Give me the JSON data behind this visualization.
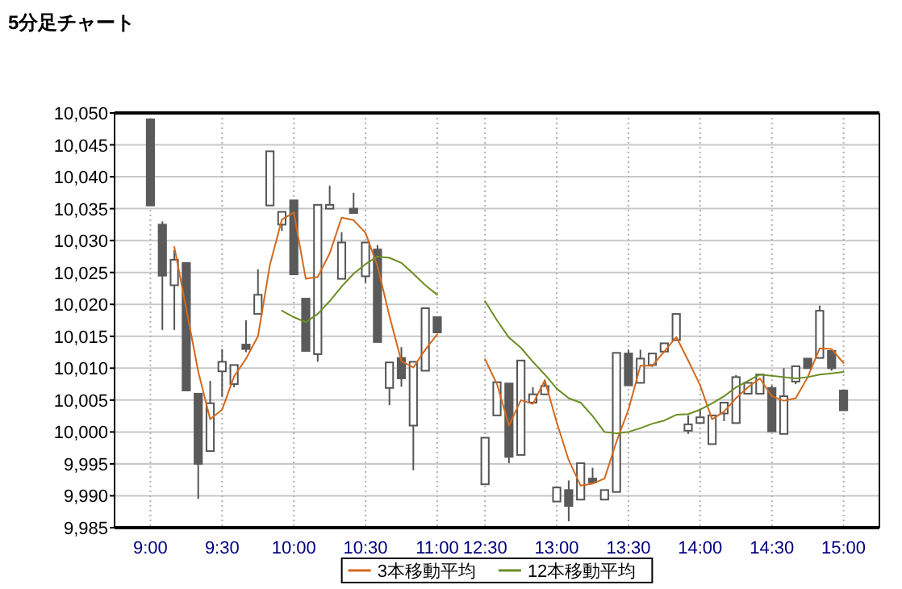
{
  "chart_data": {
    "type": "candlestick",
    "title": "5分足チャート",
    "categories": [
      "9:00",
      null,
      null,
      null,
      null,
      null,
      "9:30",
      null,
      null,
      null,
      null,
      null,
      "10:00",
      null,
      null,
      null,
      null,
      null,
      "10:30",
      null,
      null,
      null,
      null,
      null,
      "11:00",
      null,
      null,
      null,
      "12:30",
      null,
      null,
      null,
      null,
      null,
      "13:00",
      null,
      null,
      null,
      null,
      null,
      "13:30",
      null,
      null,
      null,
      null,
      null,
      "14:00",
      null,
      null,
      null,
      null,
      null,
      "14:30",
      null,
      null,
      null,
      null,
      null,
      "15:00"
    ],
    "ohlc": [
      [
        10049,
        10049,
        10035.5,
        10035.5
      ],
      [
        10032.5,
        10033,
        10016,
        10024.5
      ],
      [
        10023,
        10028.5,
        10016,
        10027
      ],
      [
        10026.5,
        10026.5,
        10006.5,
        10006.5
      ],
      [
        10006,
        10006,
        9989.5,
        9995
      ],
      [
        9997,
        10008,
        9997,
        10004.5
      ],
      [
        10009.5,
        10013,
        10005.5,
        10011
      ],
      [
        10007.5,
        10010.5,
        10007,
        10010.5
      ],
      [
        10013.7,
        10017.5,
        10012.5,
        10013
      ],
      [
        10018.5,
        10025.5,
        10018.5,
        10021.5
      ],
      [
        10035.5,
        10044,
        10035.5,
        10044
      ],
      [
        10032.5,
        10034.5,
        10031.5,
        10034.5
      ],
      [
        10036.3,
        10036.3,
        10024.7,
        10024.7
      ],
      [
        10020.9,
        10020.9,
        10012.7,
        10012.7
      ],
      [
        10012.2,
        10035.6,
        10011,
        10035.6
      ],
      [
        10035,
        10038.6,
        10035,
        10035.6
      ],
      [
        10024,
        10031.3,
        10024,
        10029.7
      ],
      [
        10035,
        10037.5,
        10034.3,
        10034.3
      ],
      [
        10024.4,
        10029.7,
        10023.4,
        10029.7
      ],
      [
        10028.6,
        10029.3,
        10014.1,
        10014.1
      ],
      [
        10006.9,
        10010.9,
        10004.2,
        10010.9
      ],
      [
        10011.6,
        10013.3,
        10007.1,
        10008.4
      ],
      [
        10001,
        10011,
        9994,
        10011
      ],
      [
        10009.6,
        10019.4,
        10009.6,
        10019.4
      ],
      [
        10018,
        10018,
        10015.6,
        10015.6
      ],
      null,
      null,
      null,
      [
        9991.8,
        9999.1,
        9991.8,
        9999.1
      ],
      [
        10002.6,
        10007.8,
        10002.6,
        10007.8
      ],
      [
        10007.6,
        10007.6,
        9995.1,
        9996.1
      ],
      [
        9996.4,
        10011.2,
        9996.4,
        10011.2
      ],
      [
        10004.6,
        10007,
        10004.6,
        10005.9
      ],
      [
        10005.9,
        10008.2,
        10005.9,
        10007.2
      ],
      [
        9989.1,
        9991.3,
        9989.1,
        9991.3
      ],
      [
        9990.9,
        9992.4,
        9986,
        9988.4
      ],
      [
        9989.4,
        9995.1,
        9989.4,
        9995.1
      ],
      [
        9992.7,
        9994.4,
        9992.1,
        9992.1
      ],
      [
        9989.4,
        9990.9,
        9989.4,
        9990.9
      ],
      [
        9990.6,
        10012.4,
        9990.6,
        10012.4
      ],
      [
        10012.3,
        10012.9,
        10007.3,
        10007.3
      ],
      [
        10007.7,
        10012.9,
        10007.7,
        10011.5
      ],
      [
        10010.5,
        10012.3,
        10010.2,
        10012.3
      ],
      [
        10012.6,
        10013.9,
        10012.6,
        10013.9
      ],
      [
        10014.4,
        10018.5,
        10014.4,
        10018.5
      ],
      [
        10000.2,
        10002.6,
        9999.7,
        10001.2
      ],
      [
        10001.4,
        10003.6,
        10001.4,
        10002.3
      ],
      [
        9998.1,
        10002.6,
        9998.1,
        10002.6
      ],
      [
        10002.9,
        10004.6,
        10001.7,
        10004.6
      ],
      [
        10001.4,
        10008.9,
        10001.4,
        10008.6
      ],
      [
        10006,
        10007.7,
        10006,
        10007.7
      ],
      [
        10006,
        10009,
        10006,
        10009
      ],
      [
        10006.9,
        10007.3,
        10000.1,
        10000.1
      ],
      [
        9999.7,
        10010,
        9999.7,
        10005.6
      ],
      [
        10007.9,
        10010.3,
        10007.5,
        10010.3
      ],
      [
        10011.5,
        10011.5,
        10010,
        10010
      ],
      [
        10011.6,
        10019.8,
        10011.6,
        10019
      ],
      [
        10012.7,
        10012.7,
        10009.6,
        10010
      ],
      [
        10006.5,
        10006.5,
        10003.4,
        10003.4
      ]
    ],
    "series": [
      {
        "name": "3本移動平均",
        "type": "line",
        "color": "#d2691e",
        "values": [
          null,
          null,
          10029,
          10019.3,
          10009.5,
          10002,
          10003.5,
          10008.7,
          10011.5,
          10015,
          10026.2,
          10033.3,
          10034.4,
          10024,
          10024.3,
          10028,
          10033.6,
          10033.2,
          10031.2,
          10026,
          10018.2,
          10011.1,
          10010.1,
          10012.9,
          10015.3,
          null,
          null,
          null,
          10011.4,
          10007.5,
          10001,
          10005,
          10004.4,
          10008.1,
          10001.5,
          9995.6,
          9991.6,
          9991.9,
          9992.7,
          9998.5,
          10003.5,
          10010.4,
          10010.4,
          10012.6,
          10014.9,
          10011.2,
          10007.3,
          10002,
          10003.2,
          10005.3,
          10007,
          10008.4,
          10005.6,
          10004.9,
          10005.3,
          10008.6,
          10013.1,
          10013,
          10010.8
        ]
      },
      {
        "name": "12本移動平均",
        "type": "line",
        "color": "#6b8e23",
        "values": [
          null,
          null,
          null,
          null,
          null,
          null,
          null,
          null,
          null,
          null,
          null,
          10019,
          10018,
          10017.2,
          10018.5,
          10020.5,
          10022.8,
          10024.8,
          10026.3,
          10027.5,
          10027.3,
          10026.5,
          10024.8,
          10023,
          10021.5,
          null,
          null,
          null,
          10020.5,
          10017.5,
          10014.8,
          10013.2,
          10011,
          10009,
          10006.8,
          10005.3,
          10004.6,
          10002.5,
          10000,
          9999.8,
          10000,
          10000.6,
          10001.3,
          10001.8,
          10002.7,
          10002.8,
          10003.5,
          10004.5,
          10005.6,
          10007,
          10008,
          10009,
          10008.8,
          10008.6,
          10008.4,
          10008.6,
          10009,
          10009.2,
          10009.4
        ]
      }
    ],
    "ylim": [
      9985,
      10050
    ],
    "yticks": [
      {
        "value": 9985,
        "label": "9,985"
      },
      {
        "value": 9990,
        "label": "9,990"
      },
      {
        "value": 9995,
        "label": "9,995"
      },
      {
        "value": 10000,
        "label": "10,000"
      },
      {
        "value": 10005,
        "label": "10,005"
      },
      {
        "value": 10010,
        "label": "10,010"
      },
      {
        "value": 10015,
        "label": "10,015"
      },
      {
        "value": 10020,
        "label": "10,020"
      },
      {
        "value": 10025,
        "label": "10,025"
      },
      {
        "value": 10030,
        "label": "10,030"
      },
      {
        "value": 10035,
        "label": "10,035"
      },
      {
        "value": 10040,
        "label": "10,040"
      },
      {
        "value": 10045,
        "label": "10,045"
      },
      {
        "value": 10050,
        "label": "10,050"
      }
    ],
    "grid": true,
    "legend": "bottom",
    "line_style": "solid"
  }
}
